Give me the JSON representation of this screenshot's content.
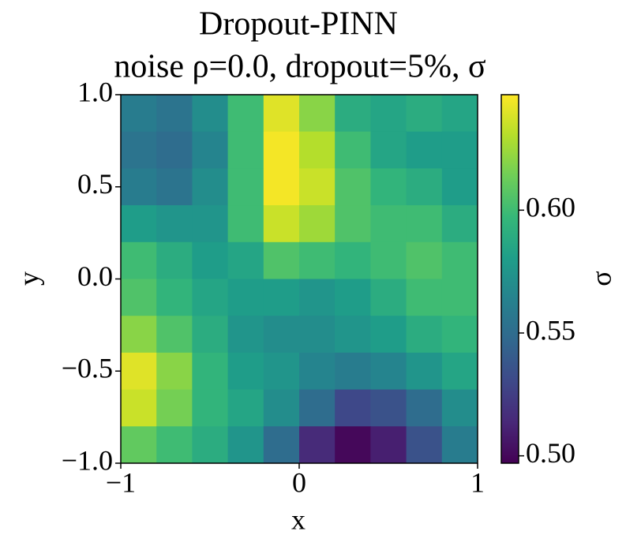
{
  "chart_data": {
    "type": "heatmap",
    "title": "Dropout-PINN",
    "subtitle": "noise ρ=0.0, dropout=5%, σ",
    "x_label": "x",
    "y_label": "y",
    "colorbar_label": "σ",
    "colormap": "viridis",
    "xlim": [
      -1,
      1
    ],
    "ylim": [
      -1,
      1
    ],
    "xticks": [
      {
        "value": -1,
        "label": "−1"
      },
      0,
      1
    ],
    "yticks": [
      {
        "value": -1,
        "label": "−1.0"
      },
      {
        "value": -0.5,
        "label": "−0.5"
      },
      {
        "value": 0,
        "label": "0.0"
      },
      {
        "value": 0.5,
        "label": "0.5"
      },
      {
        "value": 1,
        "label": "1.0"
      }
    ],
    "clim": [
      0.497,
      0.647
    ],
    "cticks": [
      {
        "value": 0.5,
        "label": "0.50"
      },
      {
        "value": 0.55,
        "label": "0.55"
      },
      {
        "value": 0.6,
        "label": "0.60"
      }
    ],
    "x": [
      -0.9,
      -0.7,
      -0.5,
      -0.3,
      -0.1,
      0.1,
      0.3,
      0.5,
      0.7,
      0.9
    ],
    "y": [
      0.9,
      0.7,
      0.5,
      0.3,
      0.1,
      -0.1,
      -0.3,
      -0.5,
      -0.7,
      -0.9
    ],
    "z": [
      [
        0.56,
        0.555,
        0.57,
        0.6,
        0.64,
        0.62,
        0.59,
        0.585,
        0.59,
        0.585
      ],
      [
        0.555,
        0.55,
        0.565,
        0.6,
        0.645,
        0.63,
        0.6,
        0.585,
        0.58,
        0.58
      ],
      [
        0.56,
        0.555,
        0.57,
        0.6,
        0.645,
        0.635,
        0.605,
        0.595,
        0.59,
        0.58
      ],
      [
        0.58,
        0.575,
        0.575,
        0.6,
        0.635,
        0.625,
        0.605,
        0.6,
        0.6,
        0.59
      ],
      [
        0.6,
        0.59,
        0.58,
        0.585,
        0.605,
        0.6,
        0.595,
        0.6,
        0.605,
        0.6
      ],
      [
        0.605,
        0.595,
        0.585,
        0.58,
        0.58,
        0.575,
        0.58,
        0.59,
        0.6,
        0.6
      ],
      [
        0.62,
        0.605,
        0.59,
        0.575,
        0.57,
        0.57,
        0.575,
        0.58,
        0.59,
        0.595
      ],
      [
        0.64,
        0.62,
        0.595,
        0.58,
        0.575,
        0.565,
        0.56,
        0.565,
        0.575,
        0.585
      ],
      [
        0.635,
        0.615,
        0.595,
        0.585,
        0.57,
        0.55,
        0.53,
        0.535,
        0.55,
        0.57
      ],
      [
        0.61,
        0.6,
        0.59,
        0.575,
        0.55,
        0.515,
        0.5,
        0.51,
        0.535,
        0.56
      ]
    ]
  }
}
